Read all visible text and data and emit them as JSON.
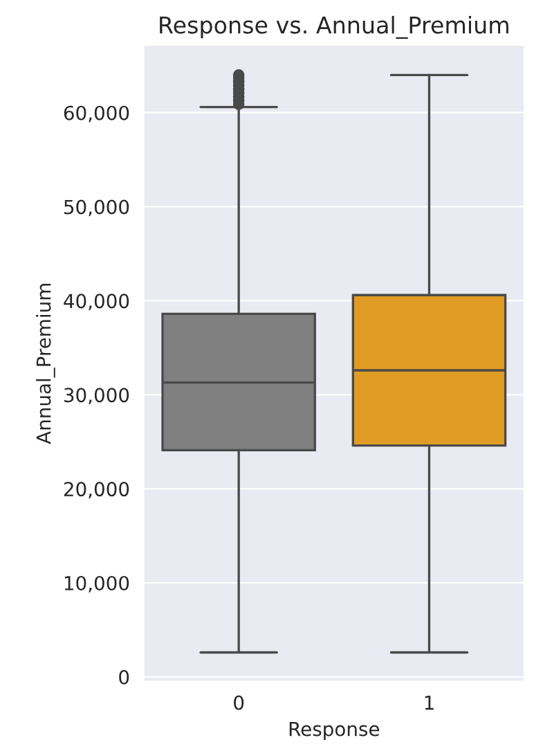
{
  "chart_data": {
    "type": "box",
    "title": "Response vs. Annual_Premium",
    "xlabel": "Response",
    "ylabel": "Annual_Premium",
    "categories": [
      "0",
      "1"
    ],
    "colors": [
      "#808080",
      "#e09c24"
    ],
    "boxes": [
      {
        "low": 2600,
        "q1": 24100,
        "median": 31300,
        "q3": 38600,
        "high": 60600,
        "outliers": [
          60900,
          61300,
          61700,
          62100,
          62500,
          62900,
          63300,
          63700,
          64000
        ]
      },
      {
        "low": 2600,
        "q1": 24600,
        "median": 32600,
        "q3": 40600,
        "high": 64000
      }
    ],
    "ylim": [
      -500,
      67200
    ],
    "yticks": [
      {
        "value": 0,
        "label": "0"
      },
      {
        "value": 10000,
        "label": "10,000"
      },
      {
        "value": 20000,
        "label": "20,000"
      },
      {
        "value": 30000,
        "label": "30,000"
      },
      {
        "value": 40000,
        "label": "40,000"
      },
      {
        "value": 50000,
        "label": "50,000"
      },
      {
        "value": 60000,
        "label": "60,000"
      }
    ],
    "grid": "y"
  }
}
